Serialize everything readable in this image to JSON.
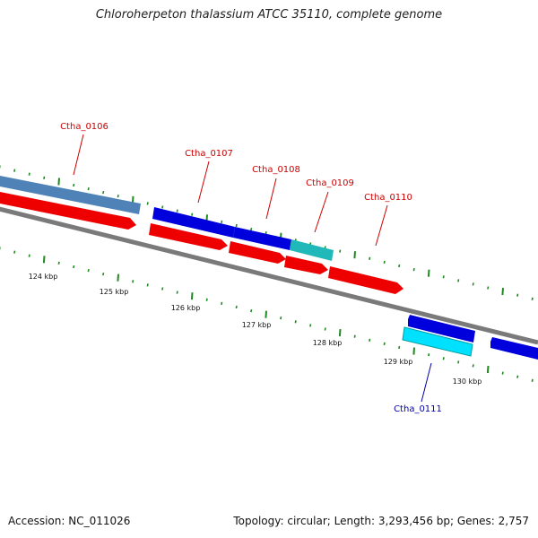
{
  "title": "Chloroherpeton thalassium ATCC 35110, complete genome",
  "footer": {
    "accession": "Accession: NC_011026",
    "summary": "Topology: circular; Length: 3,293,456 bp; Genes: 2,757"
  },
  "colors": {
    "backbone": "#7f7f7f",
    "tick": "#1f8a1f",
    "label_red": "#cc0000",
    "label_blue": "#0000aa",
    "gene_steelblue": "#4f83b8",
    "gene_blue": "#0000dd",
    "gene_teal": "#20b8b8",
    "gene_cyan": "#00e0ff",
    "gene_red": "#ee0000"
  },
  "scale_labels": [
    "124 kbp",
    "125 kbp",
    "126 kbp",
    "127 kbp",
    "128 kbp",
    "129 kbp",
    "130 kbp"
  ],
  "gene_labels": [
    {
      "text": "Ctha_0106",
      "color": "red"
    },
    {
      "text": "Ctha_0107",
      "color": "red"
    },
    {
      "text": "Ctha_0108",
      "color": "red"
    },
    {
      "text": "Ctha_0109",
      "color": "red"
    },
    {
      "text": "Ctha_0110",
      "color": "red"
    },
    {
      "text": "Ctha_0111",
      "color": "blue"
    }
  ]
}
